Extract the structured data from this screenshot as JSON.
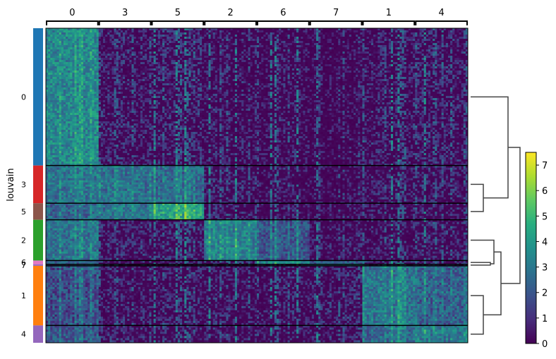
{
  "chart_data": {
    "type": "heatmap",
    "title": "",
    "ylabel": "louvain",
    "column_groups": [
      "0",
      "3",
      "5",
      "2",
      "6",
      "7",
      "1",
      "4"
    ],
    "row_groups": [
      {
        "name": "0",
        "label": "0",
        "color": "#1f77b4",
        "cells": 364
      },
      {
        "name": "3",
        "label": "3",
        "color": "#d62728",
        "cells": 100
      },
      {
        "name": "5",
        "label": "5",
        "color": "#8c564b",
        "cells": 44
      },
      {
        "name": "2",
        "label": "2",
        "color": "#2ca02c",
        "cells": 108
      },
      {
        "name": "6",
        "label": "6",
        "color": "#e377c2",
        "cells": 10
      },
      {
        "name": "7",
        "label": "7",
        "color": "#9467bd",
        "cells": 4
      },
      {
        "name": "1",
        "label": "1",
        "color": "#ff7f0e",
        "cells": 158
      },
      {
        "name": "4",
        "label": "4",
        "color": "#9467bd",
        "cells": 46
      }
    ],
    "mean_expression": [
      [
        3.6,
        0.8,
        0.9,
        0.7,
        0.6,
        0.3,
        0.8,
        0.9
      ],
      [
        3.0,
        2.9,
        2.6,
        0.9,
        0.6,
        0.4,
        0.8,
        0.9
      ],
      [
        2.6,
        2.9,
        4.2,
        0.9,
        0.6,
        0.3,
        0.6,
        0.7
      ],
      [
        3.0,
        0.9,
        0.9,
        3.4,
        2.1,
        0.5,
        0.7,
        0.9
      ],
      [
        2.4,
        0.8,
        0.8,
        1.6,
        3.5,
        2.2,
        1.6,
        1.0
      ],
      [
        2.2,
        0.7,
        0.7,
        1.0,
        1.5,
        3.4,
        1.5,
        1.0
      ],
      [
        2.0,
        0.7,
        0.7,
        0.8,
        0.8,
        0.9,
        3.0,
        2.3
      ],
      [
        2.2,
        0.8,
        0.8,
        0.8,
        0.8,
        0.9,
        2.6,
        3.1
      ]
    ],
    "colorbar": {
      "colormap": "viridis",
      "range": [
        0,
        7.5
      ],
      "ticks": [
        0,
        1,
        2,
        3,
        4,
        5,
        6,
        7
      ]
    },
    "dendrogram_order": [
      "0",
      "3",
      "5",
      "2",
      "6",
      "7",
      "1",
      "4"
    ],
    "grid": false
  }
}
